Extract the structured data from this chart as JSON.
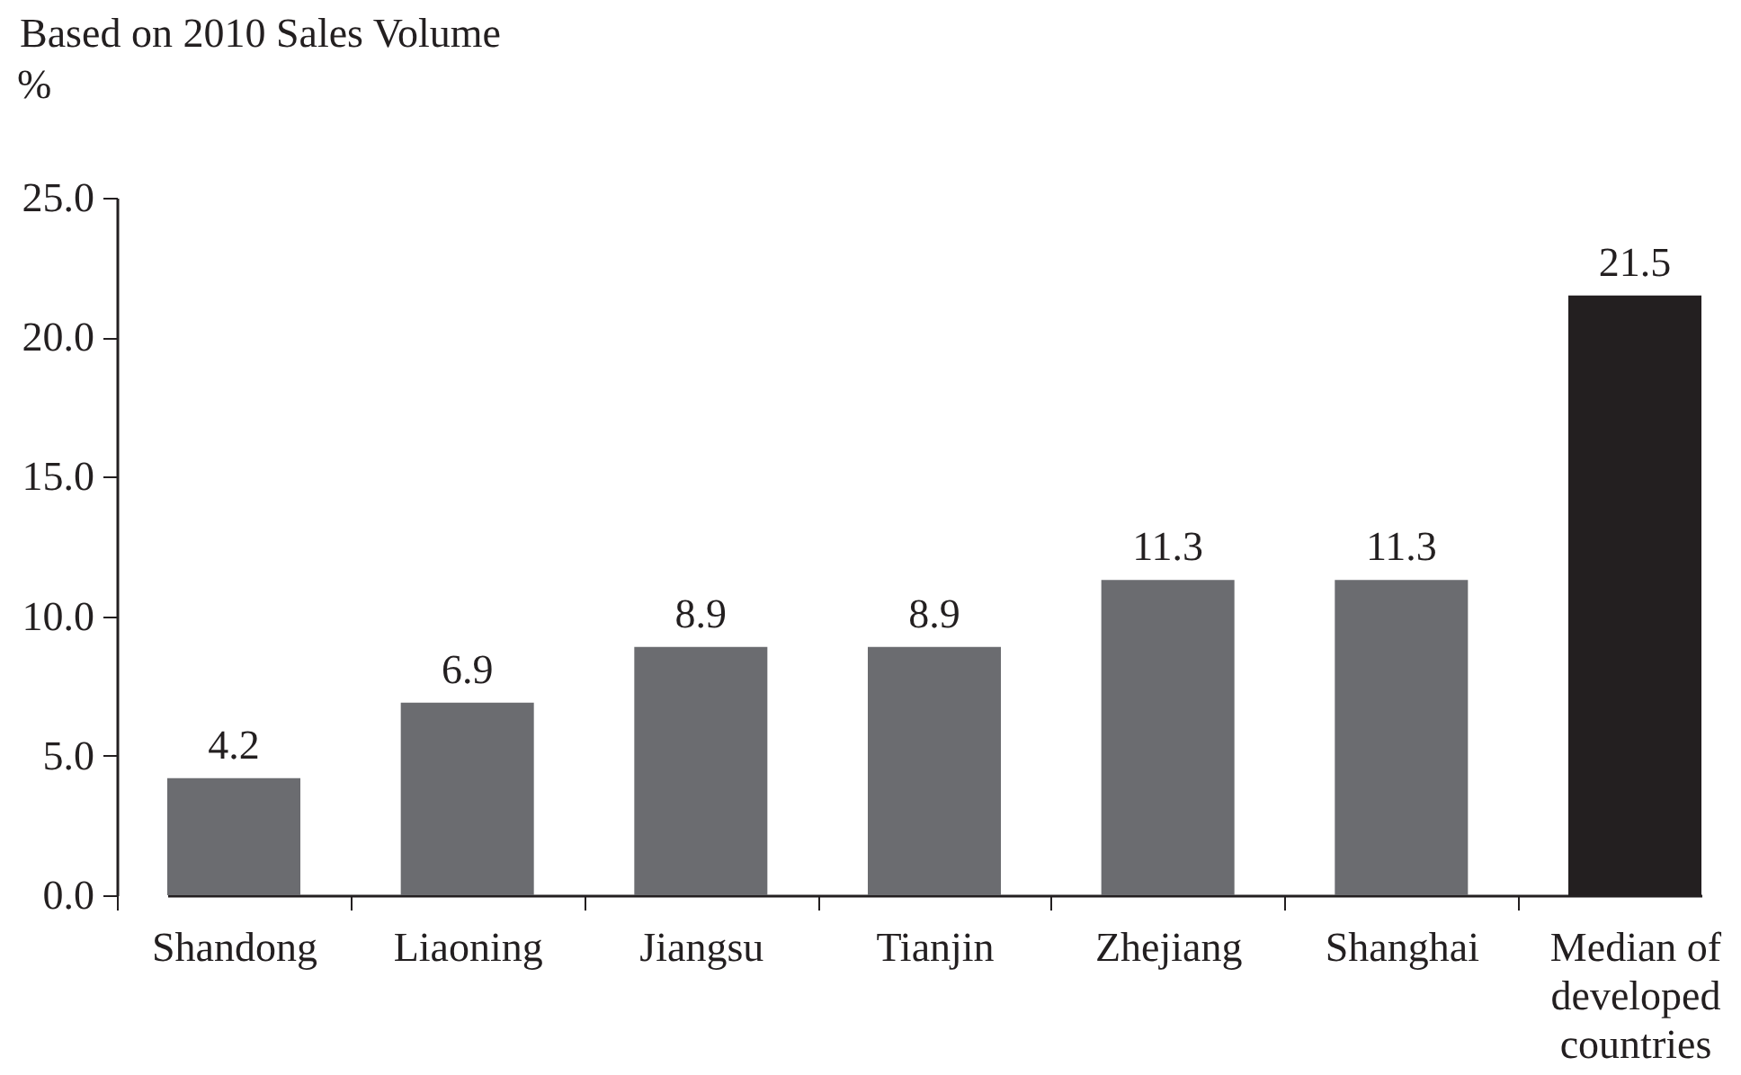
{
  "chart_data": {
    "type": "bar",
    "title": "Based on 2010 Sales Volume",
    "ylabel": "%",
    "categories": [
      "Shandong",
      "Liaoning",
      "Jiangsu",
      "Tianjin",
      "Zhejiang",
      "Shanghai",
      "Median of developed countries"
    ],
    "values": [
      4.2,
      6.9,
      8.9,
      8.9,
      11.3,
      11.3,
      21.5
    ],
    "colors": [
      "#6b6c70",
      "#6b6c70",
      "#6b6c70",
      "#6b6c70",
      "#6b6c70",
      "#6b6c70",
      "#231f20"
    ],
    "ylim": [
      0,
      25
    ],
    "yticks": [
      {
        "value": 0,
        "label": "0.0"
      },
      {
        "value": 5,
        "label": "5.0"
      },
      {
        "value": 10,
        "label": "10.0"
      },
      {
        "value": 15,
        "label": "15.0"
      },
      {
        "value": 20,
        "label": "20.0"
      },
      {
        "value": 25,
        "label": "25.0"
      }
    ],
    "data_labels": true
  }
}
